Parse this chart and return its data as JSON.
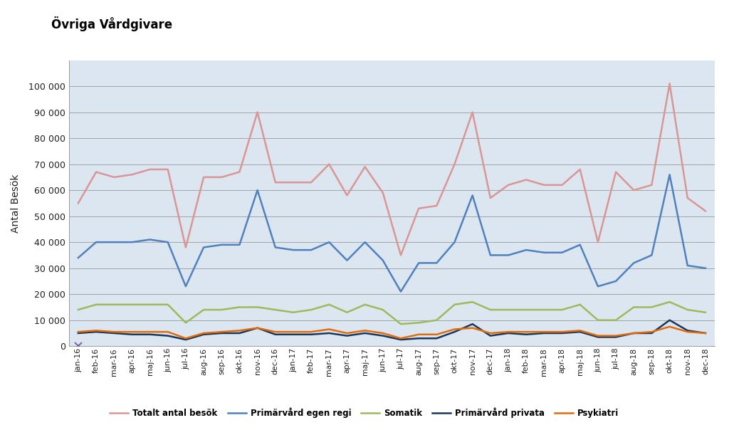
{
  "title": "Övriga Vårdgivare",
  "ylabel": "Antal Besök",
  "plot_background": "#dce6f1",
  "title_bg": "#ffffff",
  "outer_bg": "#ffffff",
  "legend_bg": "#dce6f1",
  "ylim": [
    0,
    110000
  ],
  "yticks": [
    0,
    10000,
    20000,
    30000,
    40000,
    50000,
    60000,
    70000,
    80000,
    90000,
    100000
  ],
  "months": [
    "jan-16",
    "feb-16",
    "mar-16",
    "apr-16",
    "maj-16",
    "jun-16",
    "jul-16",
    "aug-16",
    "sep-16",
    "okt-16",
    "nov-16",
    "dec-16",
    "jan-17",
    "feb-17",
    "mar-17",
    "apr-17",
    "maj-17",
    "jun-17",
    "jul-17",
    "aug-17",
    "sep-17",
    "okt-17",
    "nov-17",
    "dec-17",
    "jan-18",
    "feb-18",
    "mar-18",
    "apr-18",
    "maj-18",
    "jun-18",
    "jul-18",
    "aug-18",
    "sep-18",
    "okt-18",
    "nov-18",
    "dec-18"
  ],
  "series": {
    "Totalt antal besök": {
      "color": "#d99694",
      "linewidth": 1.8,
      "values": [
        55000,
        67000,
        65000,
        66000,
        68000,
        68000,
        38000,
        65000,
        65000,
        67000,
        90000,
        63000,
        63000,
        63000,
        70000,
        58000,
        69000,
        59000,
        35000,
        53000,
        54000,
        70000,
        90000,
        57000,
        62000,
        64000,
        62000,
        62000,
        68000,
        40000,
        67000,
        60000,
        62000,
        101000,
        57000,
        52000
      ]
    },
    "Primärvård egen regi": {
      "color": "#4f81bd",
      "linewidth": 1.8,
      "values": [
        34000,
        40000,
        40000,
        40000,
        41000,
        40000,
        23000,
        38000,
        39000,
        39000,
        60000,
        38000,
        37000,
        37000,
        40000,
        33000,
        40000,
        33000,
        21000,
        32000,
        32000,
        40000,
        58000,
        35000,
        35000,
        37000,
        36000,
        36000,
        39000,
        23000,
        25000,
        32000,
        35000,
        66000,
        31000,
        30000
      ]
    },
    "Somatik": {
      "color": "#9bbb59",
      "linewidth": 1.8,
      "values": [
        14000,
        16000,
        16000,
        16000,
        16000,
        16000,
        9000,
        14000,
        14000,
        15000,
        15000,
        14000,
        13000,
        14000,
        16000,
        13000,
        16000,
        14000,
        8500,
        9000,
        10000,
        16000,
        17000,
        14000,
        14000,
        14000,
        14000,
        14000,
        16000,
        10000,
        10000,
        15000,
        15000,
        17000,
        14000,
        13000
      ]
    },
    "Primärvård privata": {
      "color": "#17375e",
      "linewidth": 1.8,
      "values": [
        5000,
        5500,
        5000,
        4500,
        4500,
        4000,
        2500,
        4500,
        5000,
        5000,
        7000,
        4500,
        4500,
        4500,
        5000,
        4000,
        5000,
        4000,
        2500,
        3000,
        3000,
        5500,
        8500,
        4000,
        5000,
        4500,
        5000,
        5000,
        5500,
        3500,
        3500,
        5000,
        5000,
        10000,
        6000,
        5000
      ]
    },
    "Psykiatri": {
      "color": "#e36c09",
      "linewidth": 1.8,
      "values": [
        5500,
        6000,
        5500,
        5500,
        5500,
        5500,
        3000,
        5000,
        5500,
        6000,
        7000,
        5500,
        5500,
        5500,
        6500,
        5000,
        6000,
        5000,
        3000,
        4500,
        4500,
        6500,
        7000,
        5000,
        5500,
        5500,
        5500,
        5500,
        6000,
        4000,
        4000,
        5000,
        5500,
        7500,
        5500,
        5000
      ]
    }
  },
  "legend_order": [
    "Totalt antal besök",
    "Primärvård egen regi",
    "Somatik",
    "Primärvård privata",
    "Psykiatri"
  ]
}
